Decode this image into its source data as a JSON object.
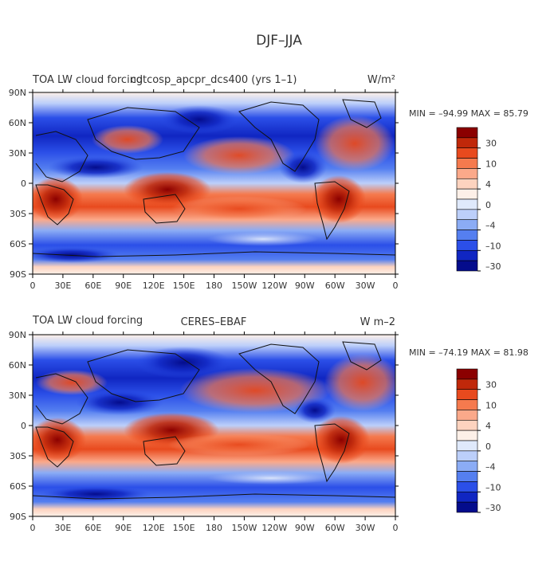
{
  "page_title": "DJF–JJA",
  "colors": {
    "text": "#333333",
    "frame": "#000000",
    "coast": "#111111"
  },
  "chart_data": [
    {
      "type": "heatmap",
      "title_left": "TOA LW cloud forcing",
      "title_center": "cdtcosp_apcpr_dcs400 (yrs 1–1)",
      "units": "W/m²",
      "stats_text": "MIN = –94.99 MAX =  85.79",
      "min": -94.99,
      "max": 85.79,
      "grid": false,
      "x_ticks": [
        "0",
        "30E",
        "60E",
        "90E",
        "120E",
        "150E",
        "180",
        "150W",
        "120W",
        "90W",
        "60W",
        "30W",
        "0"
      ],
      "y_ticks": [
        "90N",
        "60N",
        "30N",
        "0",
        "30S",
        "60S",
        "90S"
      ],
      "xlim": [
        0,
        360
      ],
      "ylim": [
        -90,
        90
      ],
      "colorbar_labels": [
        "30",
        "10",
        "4",
        "0",
        "–4",
        "–10",
        "–30"
      ],
      "colorbar_colors": [
        "#8b0000",
        "#c0280a",
        "#e84a1e",
        "#f57a4e",
        "#fba98a",
        "#fdd3bf",
        "#fdf0e8",
        "#dfe9fb",
        "#bccffa",
        "#8bacf5",
        "#557ff0",
        "#2b4fe8",
        "#1026c2",
        "#040c8c"
      ]
    },
    {
      "type": "heatmap",
      "title_left": "TOA LW cloud forcing",
      "title_center": "CERES–EBAF",
      "units": "W m–2",
      "stats_text": "MIN = –74.19 MAX =  81.98",
      "min": -74.19,
      "max": 81.98,
      "grid": false,
      "x_ticks": [
        "0",
        "30E",
        "60E",
        "90E",
        "120E",
        "150E",
        "180",
        "150W",
        "120W",
        "90W",
        "60W",
        "30W",
        "0"
      ],
      "y_ticks": [
        "90N",
        "60N",
        "30N",
        "0",
        "30S",
        "60S",
        "90S"
      ],
      "xlim": [
        0,
        360
      ],
      "ylim": [
        -90,
        90
      ],
      "colorbar_labels": [
        "30",
        "10",
        "4",
        "0",
        "–4",
        "–10",
        "–30"
      ],
      "colorbar_colors": [
        "#8b0000",
        "#c0280a",
        "#e84a1e",
        "#f57a4e",
        "#fba98a",
        "#fdd3bf",
        "#fdf0e8",
        "#dfe9fb",
        "#bccffa",
        "#8bacf5",
        "#557ff0",
        "#2b4fe8",
        "#1026c2",
        "#040c8c"
      ]
    }
  ]
}
